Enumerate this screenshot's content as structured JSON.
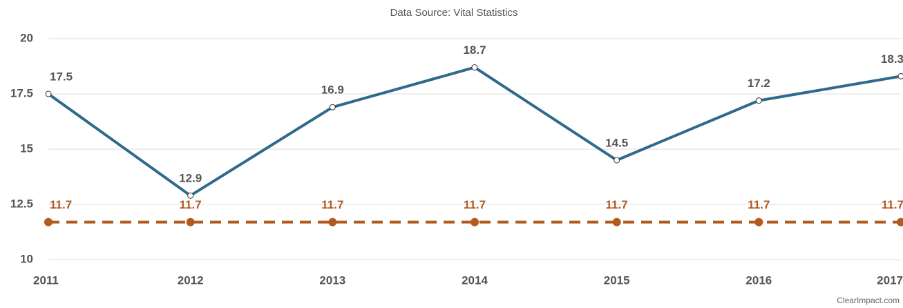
{
  "chart_data": {
    "type": "line",
    "subtitle": "Data Source: Vital Statistics",
    "credit": "ClearImpact.com",
    "categories": [
      "2011",
      "2012",
      "2013",
      "2014",
      "2015",
      "2016",
      "2017"
    ],
    "series": [
      {
        "color": "#2f6a8c",
        "marker": "hollow",
        "dashed": false,
        "values": [
          17.5,
          12.9,
          16.9,
          18.7,
          14.5,
          17.2,
          18.3
        ]
      },
      {
        "color": "#b35a1f",
        "marker": "filled",
        "dashed": true,
        "values": [
          11.7,
          11.7,
          11.7,
          11.7,
          11.7,
          11.7,
          11.7
        ]
      }
    ],
    "ylim": [
      10,
      20
    ],
    "yticks": [
      10,
      12.5,
      15,
      17.5,
      20
    ],
    "grid": true,
    "data_labels": true
  }
}
